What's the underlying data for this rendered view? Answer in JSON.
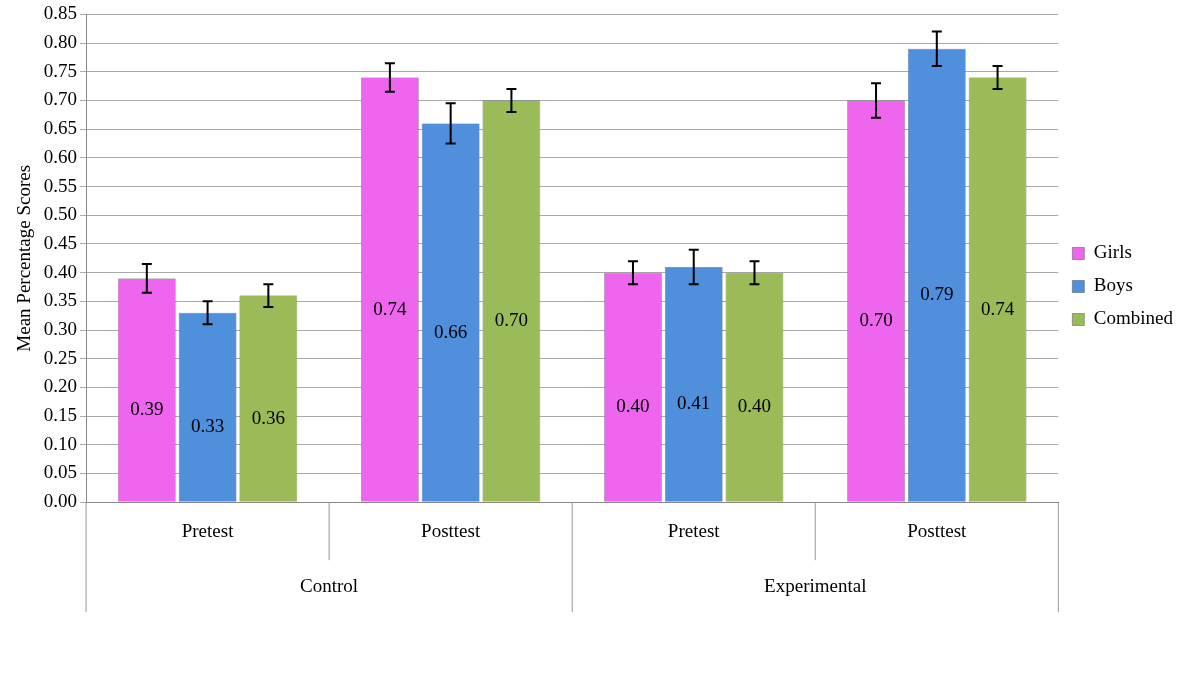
{
  "chart_data": {
    "type": "bar",
    "ylabel": "Mean Percentage Scores",
    "categories": [
      "Pretest",
      "Posttest",
      "Pretest",
      "Posttest"
    ],
    "annotations": [
      "Control",
      "Experimental"
    ],
    "series": [
      {
        "name": "Girls",
        "color": "#ee66ee",
        "values": [
          0.39,
          0.74,
          0.4,
          0.7
        ],
        "value_labels": [
          "0.39",
          "0.74",
          "0.40",
          "0.70"
        ],
        "errors": [
          0.025,
          0.025,
          0.02,
          0.03
        ]
      },
      {
        "name": "Boys",
        "color": "#4f8fdc",
        "values": [
          0.33,
          0.66,
          0.41,
          0.79
        ],
        "value_labels": [
          "0.33",
          "0.66",
          "0.41",
          "0.79"
        ],
        "errors": [
          0.02,
          0.035,
          0.03,
          0.03
        ]
      },
      {
        "name": "Combined",
        "color": "#9bbb59",
        "values": [
          0.36,
          0.7,
          0.4,
          0.74
        ],
        "value_labels": [
          "0.36",
          "0.70",
          "0.40",
          "0.74"
        ],
        "errors": [
          0.02,
          0.02,
          0.02,
          0.02
        ]
      }
    ],
    "ylim": [
      0,
      0.85
    ],
    "yticks": [
      {
        "value": 0,
        "label": "0.00"
      },
      0.05,
      {
        "value": 0.1,
        "label": "0.10"
      },
      0.15,
      {
        "value": 0.2,
        "label": "0.20"
      },
      0.25,
      {
        "value": 0.3,
        "label": "0.30"
      },
      0.35,
      {
        "value": 0.4,
        "label": "0.40"
      },
      0.45,
      {
        "value": 0.5,
        "label": "0.50"
      },
      0.55,
      {
        "value": 0.6,
        "label": "0.60"
      },
      0.65,
      {
        "value": 0.7,
        "label": "0.70"
      },
      0.75,
      {
        "value": 0.8,
        "label": "0.80"
      },
      0.85
    ],
    "grid": "y",
    "legend": "right"
  }
}
